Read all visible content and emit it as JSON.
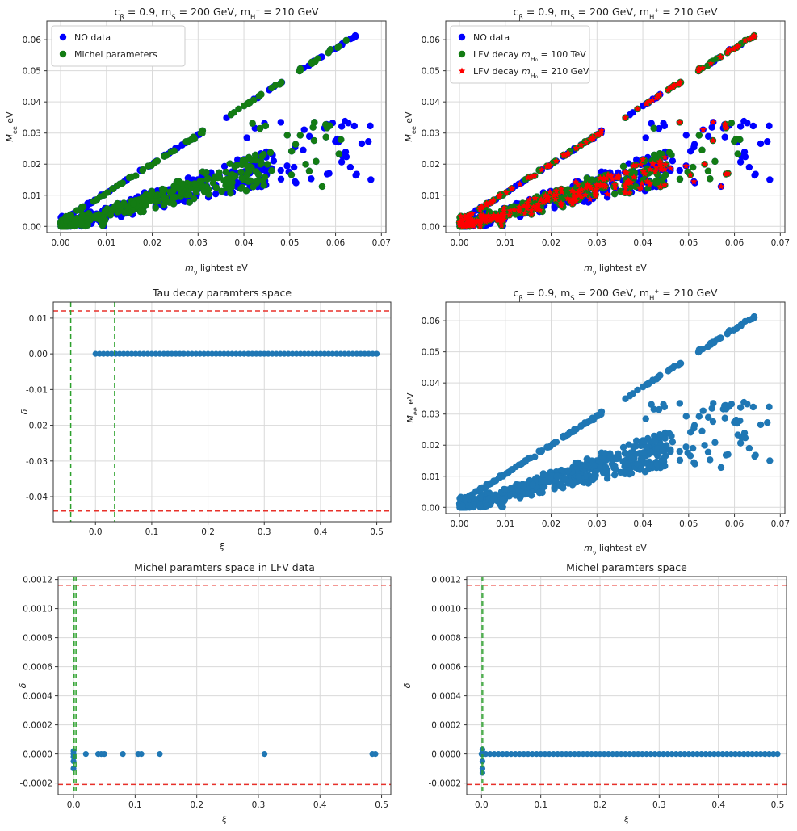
{
  "colors": {
    "no_data": "#0000ff",
    "green": "#137c13",
    "red": "#ff0000",
    "steel": "#1f77b4",
    "dashed_red": "#e8312a",
    "dashed_green": "#2ca02c",
    "grid": "#d9d9d9"
  },
  "chart_data": [
    {
      "type": "scatter",
      "title": "c_β = 0.9, m_S = 200 GeV, m_H+ = 210 GeV",
      "xlabel": "m_ν lightest eV",
      "ylabel": "M_ee eV",
      "xlim": [
        -0.003,
        0.071
      ],
      "ylim": [
        -0.002,
        0.066
      ],
      "xticks": [
        "0.00",
        "0.01",
        "0.02",
        "0.03",
        "0.04",
        "0.05",
        "0.06",
        "0.07"
      ],
      "yticks": [
        "0.00",
        "0.01",
        "0.02",
        "0.03",
        "0.04",
        "0.05",
        "0.06"
      ],
      "grid": true,
      "legend": "top-left",
      "series": [
        {
          "name": "NO data",
          "color": "#0000ff",
          "marker": "circle"
        },
        {
          "name": "Michel parameters",
          "color": "#137c13",
          "marker": "circle"
        }
      ]
    },
    {
      "type": "scatter",
      "title": "c_β = 0.9, m_S = 200 GeV, m_H+ = 210 GeV",
      "xlabel": "m_ν lightest eV",
      "ylabel": "M_ee eV",
      "xlim": [
        -0.003,
        0.071
      ],
      "ylim": [
        -0.002,
        0.066
      ],
      "xticks": [
        "0.00",
        "0.01",
        "0.02",
        "0.03",
        "0.04",
        "0.05",
        "0.06",
        "0.07"
      ],
      "yticks": [
        "0.00",
        "0.01",
        "0.02",
        "0.03",
        "0.04",
        "0.05",
        "0.06"
      ],
      "grid": true,
      "legend": "top-left",
      "series": [
        {
          "name": "NO data",
          "color": "#0000ff",
          "marker": "circle"
        },
        {
          "name": "LFV decay m_H0 = 100 TeV",
          "color": "#137c13",
          "marker": "circle"
        },
        {
          "name": "LFV decay m_H0 = 210 GeV",
          "color": "#ff0000",
          "marker": "star"
        }
      ]
    },
    {
      "type": "scatter",
      "title": "Tau decay paramters space",
      "xlabel": "ξ",
      "ylabel": "δ",
      "xlim": [
        -0.075,
        0.525
      ],
      "ylim": [
        -0.047,
        0.0145
      ],
      "xticks": [
        "0.0",
        "0.1",
        "0.2",
        "0.3",
        "0.4",
        "0.5"
      ],
      "yticks": [
        "0.01",
        "0.00",
        "-0.01",
        "-0.02",
        "-0.03",
        "-0.04"
      ],
      "grid": true,
      "points_range": {
        "x": [
          0.0,
          0.5
        ],
        "y": 0.0
      },
      "hlines": [
        0.012,
        -0.044
      ],
      "vlines": [
        -0.044,
        0.034
      ]
    },
    {
      "type": "scatter",
      "title": "c_β = 0.9, m_S = 200 GeV, m_H+ = 210 GeV",
      "xlabel": "m_ν lightest eV",
      "ylabel": "M_ee eV",
      "xlim": [
        -0.003,
        0.071
      ],
      "ylim": [
        -0.002,
        0.066
      ],
      "xticks": [
        "0.00",
        "0.01",
        "0.02",
        "0.03",
        "0.04",
        "0.05",
        "0.06",
        "0.07"
      ],
      "yticks": [
        "0.00",
        "0.01",
        "0.02",
        "0.03",
        "0.04",
        "0.05",
        "0.06"
      ],
      "grid": true
    },
    {
      "type": "scatter",
      "title": "Michel paramters space in LFV data",
      "xlabel": "ξ",
      "ylabel": "δ",
      "xlim": [
        -0.025,
        0.515
      ],
      "ylim": [
        -0.00028,
        0.00122
      ],
      "xticks": [
        "0.0",
        "0.1",
        "0.2",
        "0.3",
        "0.4",
        "0.5"
      ],
      "yticks": [
        "0.0012",
        "0.0010",
        "0.0008",
        "0.0006",
        "0.0004",
        "0.0002",
        "0.0000",
        "-0.0002"
      ],
      "grid": true,
      "points": {
        "x": [
          0.0,
          0.0,
          0.0,
          0.0,
          0.0,
          0.02,
          0.04,
          0.045,
          0.05,
          0.08,
          0.105,
          0.11,
          0.14,
          0.31,
          0.485,
          0.49
        ],
        "y": [
          0.0,
          -5e-05,
          -0.0001,
          -2e-05,
          2e-05,
          0.0,
          0.0,
          0.0,
          0.0,
          0.0,
          0.0,
          0.0,
          0.0,
          0.0,
          0.0,
          0.0
        ]
      },
      "hlines": [
        0.00116,
        -0.00021
      ],
      "vlines": [
        0.001,
        0.004
      ]
    },
    {
      "type": "scatter",
      "title": "Michel paramters space",
      "xlabel": "ξ",
      "ylabel": "δ",
      "xlim": [
        -0.025,
        0.515
      ],
      "ylim": [
        -0.00028,
        0.00122
      ],
      "xticks": [
        "0.0",
        "0.1",
        "0.2",
        "0.3",
        "0.4",
        "0.5"
      ],
      "yticks": [
        "0.0012",
        "0.0010",
        "0.0008",
        "0.0006",
        "0.0004",
        "0.0002",
        "0.0000",
        "-0.0002"
      ],
      "grid": true,
      "points_range": {
        "x": [
          0.0,
          0.5
        ],
        "y": 0.0
      },
      "hlines": [
        0.00116,
        -0.00021
      ],
      "vlines": [
        0.001,
        0.004
      ]
    }
  ]
}
